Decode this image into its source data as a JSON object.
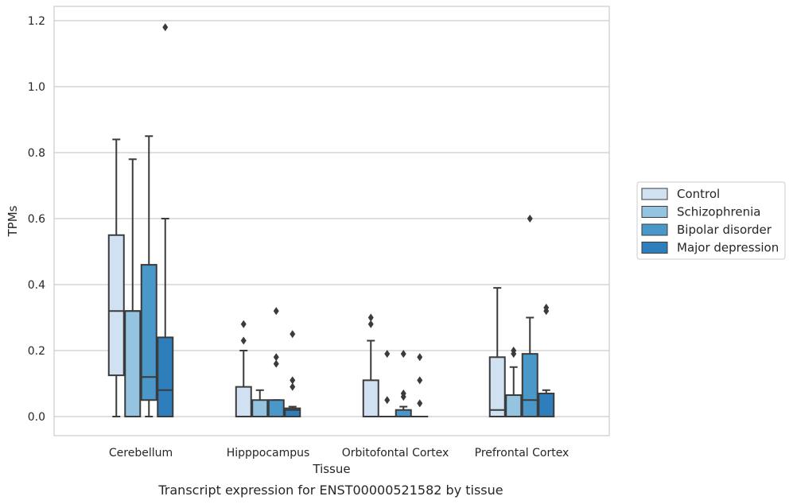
{
  "chart_data": {
    "type": "boxplot",
    "title": "Transcript expression for ENST00000521582 by tissue",
    "xlabel": "Tissue",
    "ylabel": "TPMs",
    "ylim": [
      -0.057,
      1.24
    ],
    "yticks": [
      "0.0",
      "0.2",
      "0.4",
      "0.6",
      "0.8",
      "1.0",
      "1.2"
    ],
    "grid": "horizontal",
    "legend_position": "right",
    "categories": [
      "Cerebellum",
      "Hipppocampus",
      "Orbitofontal Cortex",
      "Prefrontal Cortex"
    ],
    "series": [
      {
        "name": "Control",
        "color": "#d0e1f2",
        "boxes": [
          {
            "min": 0.0,
            "q1": 0.125,
            "median": 0.32,
            "q3": 0.55,
            "max": 0.84,
            "outliers": []
          },
          {
            "min": 0.0,
            "q1": 0.0,
            "median": 0.0,
            "q3": 0.09,
            "max": 0.2,
            "outliers": [
              0.23,
              0.28
            ]
          },
          {
            "min": 0.0,
            "q1": 0.0,
            "median": 0.0,
            "q3": 0.11,
            "max": 0.23,
            "outliers": [
              0.28,
              0.3
            ]
          },
          {
            "min": 0.0,
            "q1": 0.0,
            "median": 0.02,
            "q3": 0.18,
            "max": 0.39,
            "outliers": []
          }
        ]
      },
      {
        "name": "Schizophrenia",
        "color": "#94c4df",
        "boxes": [
          {
            "min": 0.0,
            "q1": 0.0,
            "median": 0.32,
            "q3": 0.32,
            "max": 0.78,
            "outliers": []
          },
          {
            "min": 0.0,
            "q1": 0.0,
            "median": 0.0,
            "q3": 0.05,
            "max": 0.08,
            "outliers": []
          },
          {
            "min": 0.0,
            "q1": 0.0,
            "median": 0.0,
            "q3": 0.0,
            "max": 0.0,
            "outliers": [
              0.05,
              0.19
            ]
          },
          {
            "min": 0.0,
            "q1": 0.0,
            "median": 0.0,
            "q3": 0.065,
            "max": 0.15,
            "outliers": [
              0.19,
              0.2
            ]
          }
        ]
      },
      {
        "name": "Bipolar disorder",
        "color": "#4a98c9",
        "boxes": [
          {
            "min": 0.0,
            "q1": 0.05,
            "median": 0.12,
            "q3": 0.46,
            "max": 0.85,
            "outliers": []
          },
          {
            "min": 0.0,
            "q1": 0.0,
            "median": 0.0,
            "q3": 0.05,
            "max": 0.05,
            "outliers": [
              0.16,
              0.18,
              0.32
            ]
          },
          {
            "min": 0.0,
            "q1": 0.0,
            "median": 0.0,
            "q3": 0.02,
            "max": 0.03,
            "outliers": [
              0.06,
              0.07,
              0.19
            ]
          },
          {
            "min": 0.0,
            "q1": 0.0,
            "median": 0.05,
            "q3": 0.19,
            "max": 0.3,
            "outliers": [
              0.6
            ]
          }
        ]
      },
      {
        "name": "Major depression",
        "color": "#2e7ebc",
        "boxes": [
          {
            "min": 0.0,
            "q1": 0.0,
            "median": 0.08,
            "q3": 0.24,
            "max": 0.6,
            "outliers": [
              1.18
            ]
          },
          {
            "min": 0.0,
            "q1": 0.0,
            "median": 0.02,
            "q3": 0.025,
            "max": 0.03,
            "outliers": [
              0.09,
              0.11,
              0.25
            ]
          },
          {
            "min": 0.0,
            "q1": 0.0,
            "median": 0.0,
            "q3": 0.0,
            "max": 0.0,
            "outliers": [
              0.04,
              0.11,
              0.18
            ]
          },
          {
            "min": 0.0,
            "q1": 0.0,
            "median": 0.0,
            "q3": 0.07,
            "max": 0.08,
            "outliers": [
              0.32,
              0.33
            ]
          }
        ]
      }
    ]
  }
}
